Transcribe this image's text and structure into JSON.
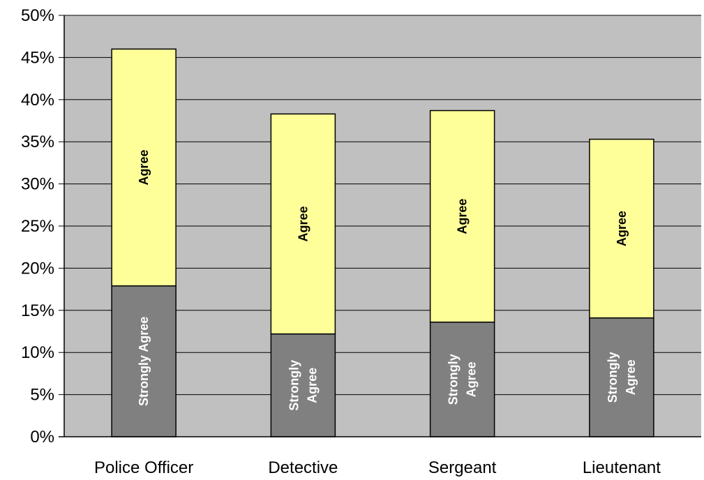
{
  "chart_data": {
    "type": "bar",
    "stacked": true,
    "categories": [
      "Police Officer",
      "Detective",
      "Sergeant",
      "Lieutenant"
    ],
    "series": [
      {
        "name": "Strongly Agree",
        "values": [
          17.9,
          12.2,
          13.6,
          14.1
        ],
        "color": "#808080",
        "label_color": "#ffffff",
        "segment_labels": [
          [
            "Strongly Agree"
          ],
          [
            "Strongly",
            "Agree"
          ],
          [
            "Strongly",
            "Agree"
          ],
          [
            "Strongly",
            "Agree"
          ]
        ]
      },
      {
        "name": "Agree",
        "values": [
          28.1,
          26.1,
          25.1,
          21.2
        ],
        "color": "#ffff99",
        "label_color": "#000000",
        "segment_labels": [
          [
            "Agree"
          ],
          [
            "Agree"
          ],
          [
            "Agree"
          ],
          [
            "Agree"
          ]
        ]
      }
    ],
    "ylim": [
      0,
      50
    ],
    "y_ticks": [
      "0%",
      "5%",
      "10%",
      "15%",
      "20%",
      "25%",
      "30%",
      "35%",
      "40%",
      "45%",
      "50%"
    ],
    "y_tick_values": [
      0,
      5,
      10,
      15,
      20,
      25,
      30,
      35,
      40,
      45,
      50
    ],
    "grid": true,
    "plot_background": "#c0c0c0",
    "title": "",
    "xlabel": "",
    "ylabel": ""
  }
}
